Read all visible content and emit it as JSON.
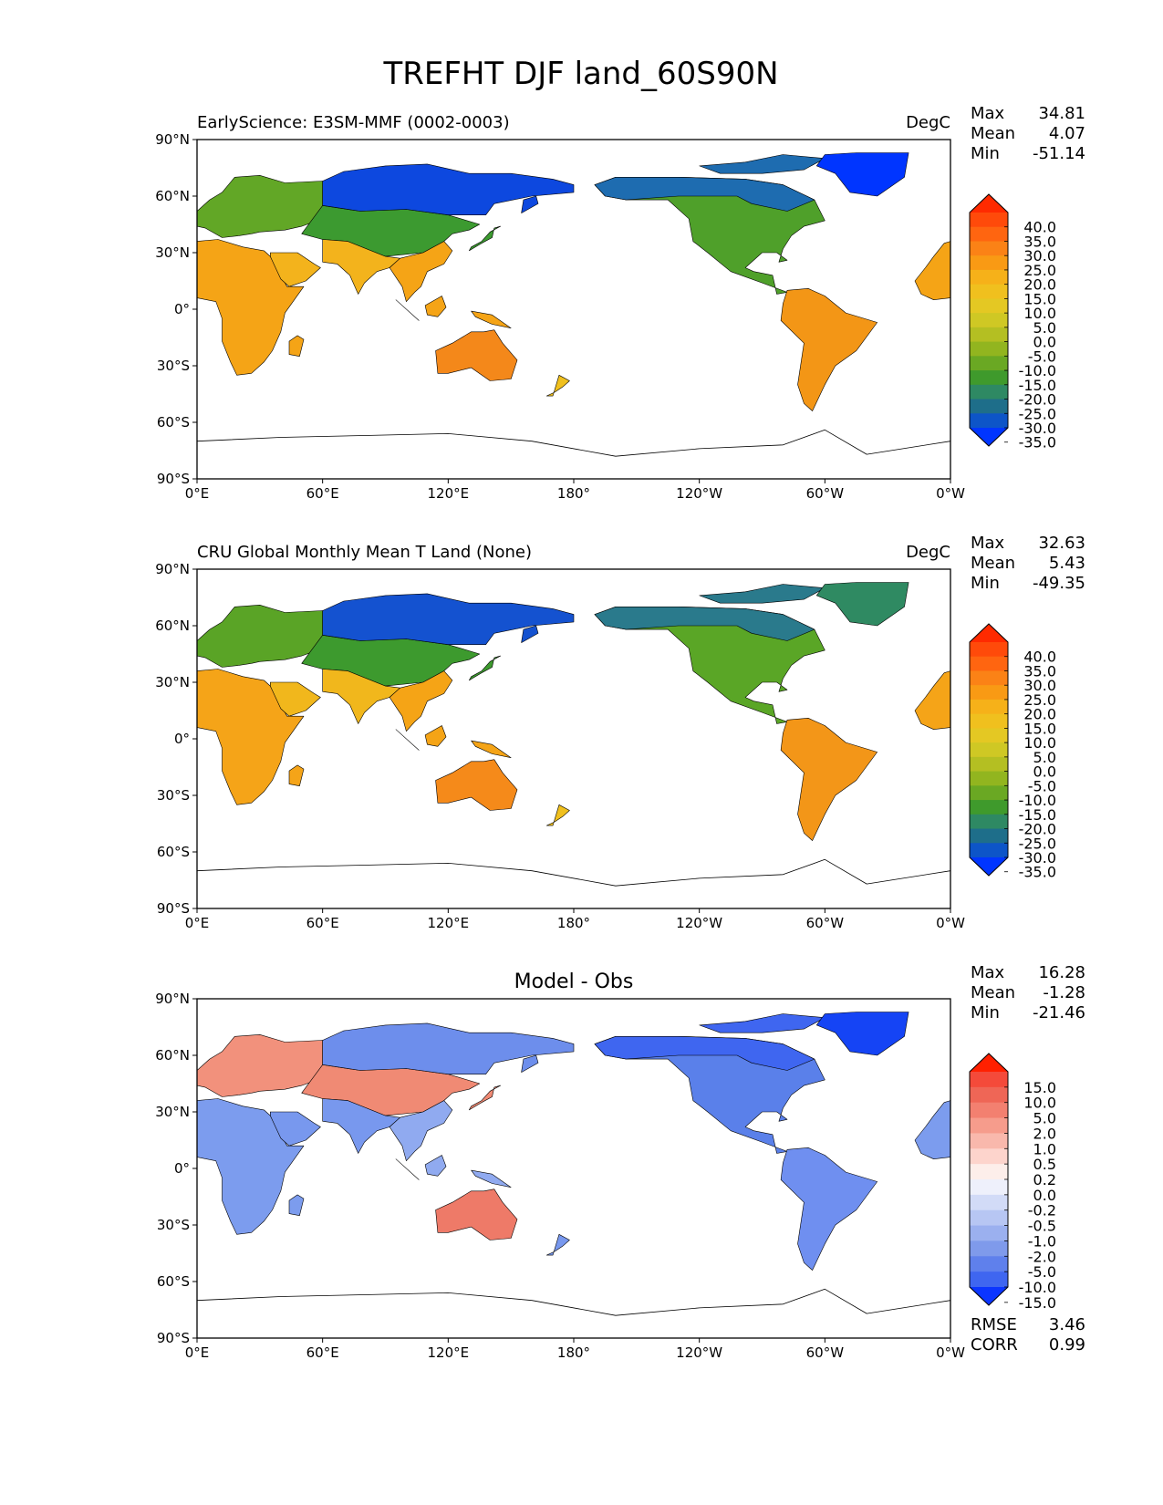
{
  "title": "TREFHT DJF land_60S90N",
  "x_ticks": [
    "0°E",
    "60°E",
    "120°E",
    "180°",
    "120°W",
    "60°W",
    "0°W"
  ],
  "y_ticks": [
    "90°N",
    "60°N",
    "30°N",
    "0°",
    "30°S",
    "60°S",
    "90°S"
  ],
  "panels": [
    {
      "name": "model",
      "left_title": "EarlyScience: E3SM-MMF (0002-0003)",
      "center_title": "",
      "units": "DegC",
      "stats": {
        "max_label": "Max",
        "max": "34.81",
        "mean_label": "Mean",
        "mean": "4.07",
        "min_label": "Min",
        "min": "-51.14"
      },
      "colorbar": {
        "labels": [
          "40.0",
          "35.0",
          "30.0",
          "25.0",
          "20.0",
          "15.0",
          "10.0",
          "5.0",
          "0.0",
          "-5.0",
          "-10.0",
          "-15.0",
          "-20.0",
          "-25.0",
          "-30.0",
          "-35.0"
        ],
        "colors": [
          "#ff2a00",
          "#ff4a0a",
          "#ff6510",
          "#fb8216",
          "#f99a14",
          "#f6b119",
          "#f0c01e",
          "#e4c823",
          "#cfc824",
          "#b4bf22",
          "#92b51f",
          "#6aa823",
          "#3f9a2c",
          "#2e8963",
          "#1e6e8a",
          "#0d55c8",
          "#0035ff"
        ]
      },
      "fields": {
        "africa": "#f5a416",
        "s_america": "#f39616",
        "australia": "#f4881a",
        "europe": "#62a726",
        "siberia": "#0d48df",
        "asia_mid": "#3c9a30",
        "india": "#f3b31c",
        "n_america": "#4fa02a",
        "canada": "#1e6cb0",
        "greenland": "#0035ff",
        "se_asia": "#f5a416",
        "nz": "#f0c01e"
      }
    },
    {
      "name": "obs",
      "left_title": "CRU Global Monthly Mean T Land (None)",
      "center_title": "",
      "units": "DegC",
      "stats": {
        "max_label": "Max",
        "max": "32.63",
        "mean_label": "Mean",
        "mean": "5.43",
        "min_label": "Min",
        "min": "-49.35"
      },
      "colorbar": {
        "labels": [
          "40.0",
          "35.0",
          "30.0",
          "25.0",
          "20.0",
          "15.0",
          "10.0",
          "5.0",
          "0.0",
          "-5.0",
          "-10.0",
          "-15.0",
          "-20.0",
          "-25.0",
          "-30.0",
          "-35.0"
        ],
        "colors": [
          "#ff2a00",
          "#ff4a0a",
          "#ff6510",
          "#fb8216",
          "#f99a14",
          "#f6b119",
          "#f0c01e",
          "#e4c823",
          "#cfc824",
          "#b4bf22",
          "#92b51f",
          "#6aa823",
          "#3f9a2c",
          "#2e8963",
          "#1e6e8a",
          "#0d55c8",
          "#0035ff"
        ]
      },
      "fields": {
        "africa": "#f5a418",
        "s_america": "#f39618",
        "australia": "#f58a1a",
        "europe": "#5aa426",
        "siberia": "#1452d0",
        "asia_mid": "#3d9a2e",
        "india": "#f1b71c",
        "n_america": "#5aa626",
        "canada": "#2a7a8c",
        "greenland": "#2f8a62",
        "se_asia": "#f5a416",
        "nz": "#f0c01e"
      }
    },
    {
      "name": "diff",
      "left_title": "",
      "center_title": "Model - Obs",
      "units": "",
      "stats": {
        "max_label": "Max",
        "max": "16.28",
        "mean_label": "Mean",
        "mean": "-1.28",
        "min_label": "Min",
        "min": "-21.46"
      },
      "metrics": {
        "rmse_label": "RMSE",
        "rmse": "3.46",
        "corr_label": "CORR",
        "corr": "0.99"
      },
      "colorbar": {
        "labels": [
          "15.0",
          "10.0",
          "5.0",
          "2.0",
          "1.0",
          "0.5",
          "0.2",
          "0.0",
          "-0.2",
          "-0.5",
          "-1.0",
          "-2.0",
          "-5.0",
          "-10.0",
          "-15.0"
        ],
        "colors": [
          "#ff2000",
          "#f44a3a",
          "#ef6656",
          "#f38070",
          "#f69c8c",
          "#f9b8ac",
          "#fdd4cc",
          "#fdeeea",
          "#eef0fb",
          "#d2dbf7",
          "#b7c6f3",
          "#9bb0ef",
          "#7f9aeb",
          "#5f80ec",
          "#3f66f0",
          "#0b35ff"
        ]
      },
      "fields": {
        "africa": "#7c9cee",
        "s_america": "#6f8ff0",
        "australia": "#ee7a68",
        "europe": "#f2917c",
        "siberia": "#6d8eec",
        "asia_mid": "#f08a74",
        "india": "#7898ee",
        "n_america": "#5a80ea",
        "canada": "#3f66f0",
        "greenland": "#1544f5",
        "se_asia": "#90aaf0",
        "nz": "#7898ee"
      }
    }
  ]
}
